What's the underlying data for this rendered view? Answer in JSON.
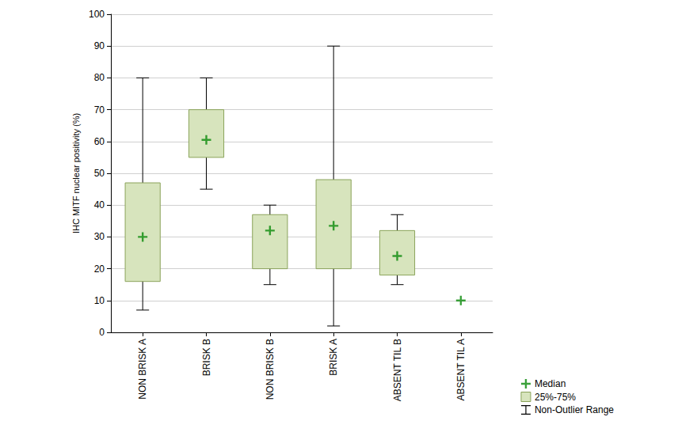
{
  "chart_data": {
    "type": "boxplot",
    "y_label": "IHC MITF nuclear positivity (%)",
    "categories": [
      "NON BRISK A",
      "BRISK B",
      "NON BRISK B",
      "BRISK A",
      "ABSENT TIL B",
      "ABSENT TIL A"
    ],
    "series": [
      {
        "name": "Median",
        "type": "scatter",
        "marker": "plus",
        "color": "#0a8a0a",
        "values": [
          30,
          60.5,
          32,
          33.5,
          24,
          10
        ]
      },
      {
        "name": "25%-75%",
        "type": "box",
        "color": "#d7e4bd",
        "values": [
          [
            16,
            47
          ],
          [
            55,
            70
          ],
          [
            20,
            37
          ],
          [
            20,
            48
          ],
          [
            18,
            32
          ],
          null
        ]
      },
      {
        "name": "Non-Outlier Range",
        "type": "whisker",
        "color": "#000000",
        "values": [
          [
            7,
            80
          ],
          [
            45,
            80
          ],
          [
            15,
            40
          ],
          [
            2,
            90
          ],
          [
            15,
            37
          ],
          null
        ]
      }
    ],
    "ylim": [
      0,
      100
    ],
    "yticks": [
      0,
      10,
      20,
      30,
      40,
      50,
      60,
      70,
      80,
      90,
      100
    ],
    "grid": true,
    "legend": "bottom-right"
  }
}
